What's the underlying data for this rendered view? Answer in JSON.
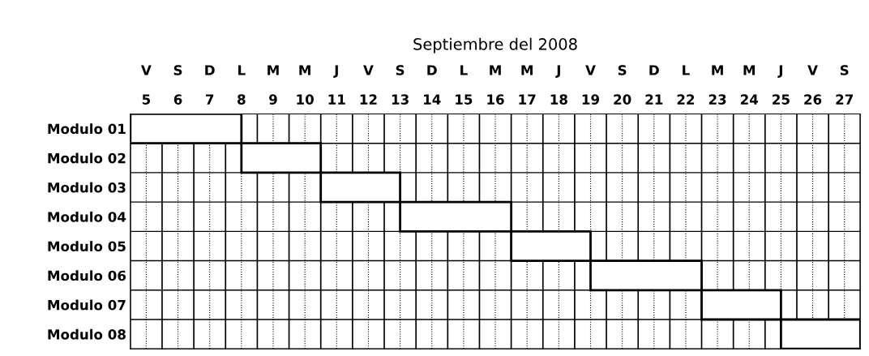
{
  "chart_data": {
    "type": "bar",
    "orientation": "horizontal",
    "title": "Septiembre del 2008",
    "categories": [
      "Modulo 01",
      "Modulo 02",
      "Modulo 03",
      "Modulo 04",
      "Modulo 05",
      "Modulo 06",
      "Modulo 07",
      "Modulo 08"
    ],
    "base": [
      5,
      8.5,
      11,
      13.5,
      17,
      19.5,
      23,
      25.5
    ],
    "values": [
      3.5,
      2.5,
      2.5,
      3.5,
      2.5,
      3.5,
      2.5,
      2.5
    ],
    "color": "#ffffff",
    "xlim": [
      5,
      28
    ],
    "xticks": [
      {
        "value": 5.5,
        "label": "5"
      },
      {
        "value": 6.5,
        "label": "6"
      },
      {
        "value": 7.5,
        "label": "7"
      },
      {
        "value": 8.5,
        "label": "8"
      },
      {
        "value": 9.5,
        "label": "9"
      },
      {
        "value": 10.5,
        "label": "10"
      },
      {
        "value": 11.5,
        "label": "11"
      },
      {
        "value": 12.5,
        "label": "12"
      },
      {
        "value": 13.5,
        "label": "13"
      },
      {
        "value": 14.5,
        "label": "14"
      },
      {
        "value": 15.5,
        "label": "15"
      },
      {
        "value": 16.5,
        "label": "16"
      },
      {
        "value": 17.5,
        "label": "17"
      },
      {
        "value": 18.5,
        "label": "18"
      },
      {
        "value": 19.5,
        "label": "19"
      },
      {
        "value": 20.5,
        "label": "20"
      },
      {
        "value": 21.5,
        "label": "21"
      },
      {
        "value": 22.5,
        "label": "22"
      },
      {
        "value": 23.5,
        "label": "23"
      },
      {
        "value": 24.5,
        "label": "24"
      },
      {
        "value": 25.5,
        "label": "25"
      },
      {
        "value": 26.5,
        "label": "26"
      },
      {
        "value": 27.5,
        "label": "27"
      }
    ],
    "annotations": [
      "V",
      "S",
      "D",
      "L",
      "M",
      "M",
      "J",
      "V",
      "S",
      "D",
      "L",
      "M",
      "M",
      "J",
      "V",
      "S",
      "D",
      "L",
      "M",
      "M",
      "J",
      "V",
      "S"
    ],
    "grid": "x"
  }
}
